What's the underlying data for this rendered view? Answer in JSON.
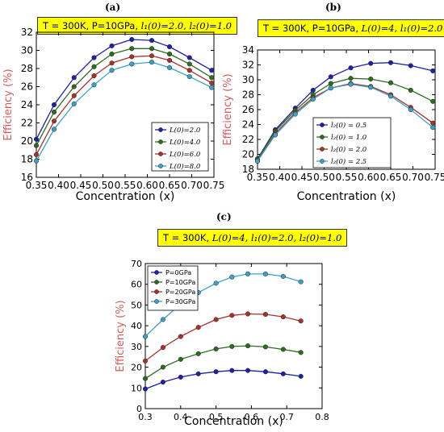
{
  "panels": [
    {
      "letter": "(a)",
      "conditions": {
        "prefix": "T = 300K, P=10GPa, ",
        "mid": "l₁(0)=2.0, ",
        "end": "l₂(0)=1.0"
      }
    },
    {
      "letter": "(b)",
      "conditions": {
        "prefix": "T = 300K, P=10GPa, ",
        "mid": "L(0)=4, ",
        "end": "l₁(0)=2.0"
      }
    },
    {
      "letter": "(c)",
      "conditions": {
        "prefix": "T = 300K, ",
        "mid": "L(0)=4, l₁(0)=2.0, ",
        "end": "l₂(0)=1.0"
      }
    }
  ],
  "chart_data": [
    {
      "type": "line",
      "xlabel": "Concentration (x)",
      "ylabel": "Efficiency (%)",
      "xlim": [
        0.35,
        0.75
      ],
      "ylim": [
        16,
        32
      ],
      "xticks": [
        "0.35",
        "0.40",
        "0.45",
        "0.50",
        "0.55",
        "0.60",
        "0.65",
        "0.70",
        "0.75"
      ],
      "yticks": [
        "16",
        "18",
        "20",
        "22",
        "24",
        "26",
        "28",
        "30",
        "32"
      ],
      "legend_position": "center-right",
      "x": [
        0.35,
        0.39,
        0.435,
        0.48,
        0.52,
        0.565,
        0.61,
        0.65,
        0.695,
        0.745
      ],
      "series": [
        {
          "name": "L(0)=2.0",
          "color": "#1f1fa8",
          "values": [
            20.2,
            24.0,
            27.0,
            29.2,
            30.5,
            31.2,
            31.1,
            30.4,
            29.2,
            27.8
          ]
        },
        {
          "name": "L(0)=4.0",
          "color": "#2a6e1e",
          "values": [
            19.5,
            23.2,
            26.0,
            28.2,
            29.6,
            30.2,
            30.2,
            29.6,
            28.5,
            27.0
          ]
        },
        {
          "name": "L(0)=6.0",
          "color": "#a8322a",
          "values": [
            18.5,
            22.2,
            25.0,
            27.2,
            28.6,
            29.3,
            29.4,
            28.9,
            27.8,
            26.4
          ]
        },
        {
          "name": "L(0)=8.0",
          "color": "#3aa2c8",
          "values": [
            17.8,
            21.3,
            24.1,
            26.2,
            27.8,
            28.5,
            28.7,
            28.1,
            27.1,
            25.9
          ]
        }
      ]
    },
    {
      "type": "line",
      "xlabel": "Concentration (x)",
      "ylabel": "Efficiency (%)",
      "xlim": [
        0.35,
        0.75
      ],
      "ylim": [
        18,
        34
      ],
      "xticks": [
        "0.35",
        "0.40",
        "0.45",
        "0.50",
        "0.55",
        "0.60",
        "0.65",
        "0.70",
        "0.75"
      ],
      "yticks": [
        "18",
        "20",
        "22",
        "24",
        "26",
        "28",
        "30",
        "32",
        "34"
      ],
      "legend_position": "center-right",
      "x": [
        0.35,
        0.39,
        0.435,
        0.475,
        0.515,
        0.56,
        0.605,
        0.65,
        0.695,
        0.745
      ],
      "series": [
        {
          "name": "l₂(0) =  0.5",
          "color": "#1f1fa8",
          "values": [
            19.4,
            23.3,
            26.2,
            28.6,
            30.4,
            31.6,
            32.2,
            32.3,
            31.9,
            31.2
          ]
        },
        {
          "name": "l₂(0) =  1.0",
          "color": "#2a6e1e",
          "values": [
            19.3,
            23.1,
            25.9,
            28.0,
            29.5,
            30.2,
            30.1,
            29.6,
            28.6,
            27.1
          ]
        },
        {
          "name": "l₂(0) =  2.0",
          "color": "#a8322a",
          "values": [
            19.1,
            22.8,
            25.6,
            27.6,
            28.9,
            29.5,
            29.1,
            28.0,
            26.3,
            24.2
          ]
        },
        {
          "name": "l₂(0) =  2.5",
          "color": "#3aa2c8",
          "values": [
            19.1,
            22.6,
            25.4,
            27.4,
            28.9,
            29.4,
            29.0,
            27.8,
            26.0,
            23.6
          ]
        }
      ]
    },
    {
      "type": "line",
      "xlabel": "Concentration (x)",
      "ylabel": "Efficiency (%)",
      "xlim": [
        0.3,
        0.8
      ],
      "ylim": [
        0,
        70
      ],
      "xticks": [
        "0.3",
        "0.4",
        "0.5",
        "0.6",
        "0.7",
        "0.8"
      ],
      "yticks": [
        "0",
        "10",
        "20",
        "30",
        "40",
        "50",
        "60",
        "70"
      ],
      "legend_position": "top-left",
      "x": [
        0.3,
        0.35,
        0.4,
        0.45,
        0.5,
        0.545,
        0.59,
        0.64,
        0.69,
        0.74
      ],
      "series": [
        {
          "name": "P=0GPa",
          "color": "#1f1fa8",
          "values": [
            9.5,
            12.8,
            15.2,
            16.8,
            17.8,
            18.4,
            18.4,
            17.8,
            16.8,
            15.6
          ]
        },
        {
          "name": "P=10GPa",
          "color": "#2a6e1e",
          "values": [
            14.5,
            20.0,
            23.8,
            26.5,
            28.8,
            30.0,
            30.3,
            29.8,
            28.6,
            27.1
          ]
        },
        {
          "name": "P=20GPa",
          "color": "#a8322a",
          "values": [
            23.0,
            29.5,
            34.8,
            39.2,
            43.0,
            45.0,
            45.7,
            45.5,
            44.3,
            42.3
          ]
        },
        {
          "name": "P=30GPa",
          "color": "#3aa2c8",
          "values": [
            34.8,
            43.0,
            50.5,
            56.0,
            60.5,
            63.5,
            65.0,
            65.0,
            63.8,
            61.2
          ]
        }
      ]
    }
  ]
}
